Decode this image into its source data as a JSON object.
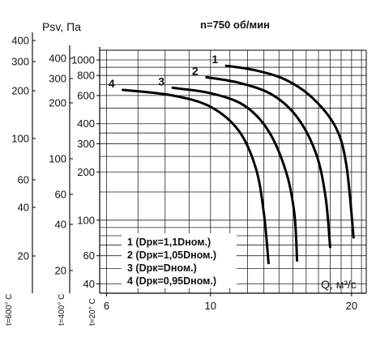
{
  "chart_data": {
    "type": "line",
    "title": "n=750 об/мин",
    "ylabel": "Psv, Па",
    "xlabel": "Q, м³/с",
    "x_scale": "log",
    "y_scale": "log",
    "xlim": [
      5.8,
      21.5
    ],
    "ylim": [
      35,
      1150
    ],
    "x_ticks": [
      "6",
      "10",
      "20"
    ],
    "y_ticks_20C": [
      "40",
      "60",
      "100",
      "200",
      "300",
      "400",
      "600",
      "800",
      "1000"
    ],
    "y_axis_400C": {
      "label": "t=400° C",
      "ticks": [
        "20",
        "40",
        "60",
        "100",
        "200",
        "300",
        "400"
      ]
    },
    "y_axis_600C": {
      "label": "t=600° C",
      "ticks": [
        "20",
        "40",
        "60",
        "100",
        "200",
        "300",
        "400"
      ]
    },
    "y_axis_20C_label": "t=20° C",
    "grid": true,
    "series": [
      {
        "name": "1",
        "legend": "1 (Dрк=1,1Dном.)",
        "points": [
          [
            10.8,
            920
          ],
          [
            12.5,
            860
          ],
          [
            14.5,
            750
          ],
          [
            16.5,
            580
          ],
          [
            18.5,
            380
          ],
          [
            19.5,
            220
          ],
          [
            20.2,
            78
          ]
        ]
      },
      {
        "name": "2",
        "legend": "2 (Dрк=1,05Dном.)",
        "points": [
          [
            9.8,
            780
          ],
          [
            11.5,
            720
          ],
          [
            13.5,
            610
          ],
          [
            15.3,
            440
          ],
          [
            16.8,
            260
          ],
          [
            17.6,
            140
          ],
          [
            18.0,
            68
          ]
        ]
      },
      {
        "name": "3",
        "legend": "3 (Dрк=Dном.)",
        "points": [
          [
            8.3,
            670
          ],
          [
            10.0,
            620
          ],
          [
            11.8,
            520
          ],
          [
            13.3,
            360
          ],
          [
            14.5,
            200
          ],
          [
            15.1,
            110
          ],
          [
            15.3,
            56
          ]
        ]
      },
      {
        "name": "4",
        "legend": "4 (Dрк=0,95Dном.)",
        "points": [
          [
            6.5,
            650
          ],
          [
            8.3,
            600
          ],
          [
            10.0,
            510
          ],
          [
            11.5,
            360
          ],
          [
            12.5,
            210
          ],
          [
            13.0,
            110
          ],
          [
            13.3,
            54
          ]
        ]
      }
    ]
  }
}
